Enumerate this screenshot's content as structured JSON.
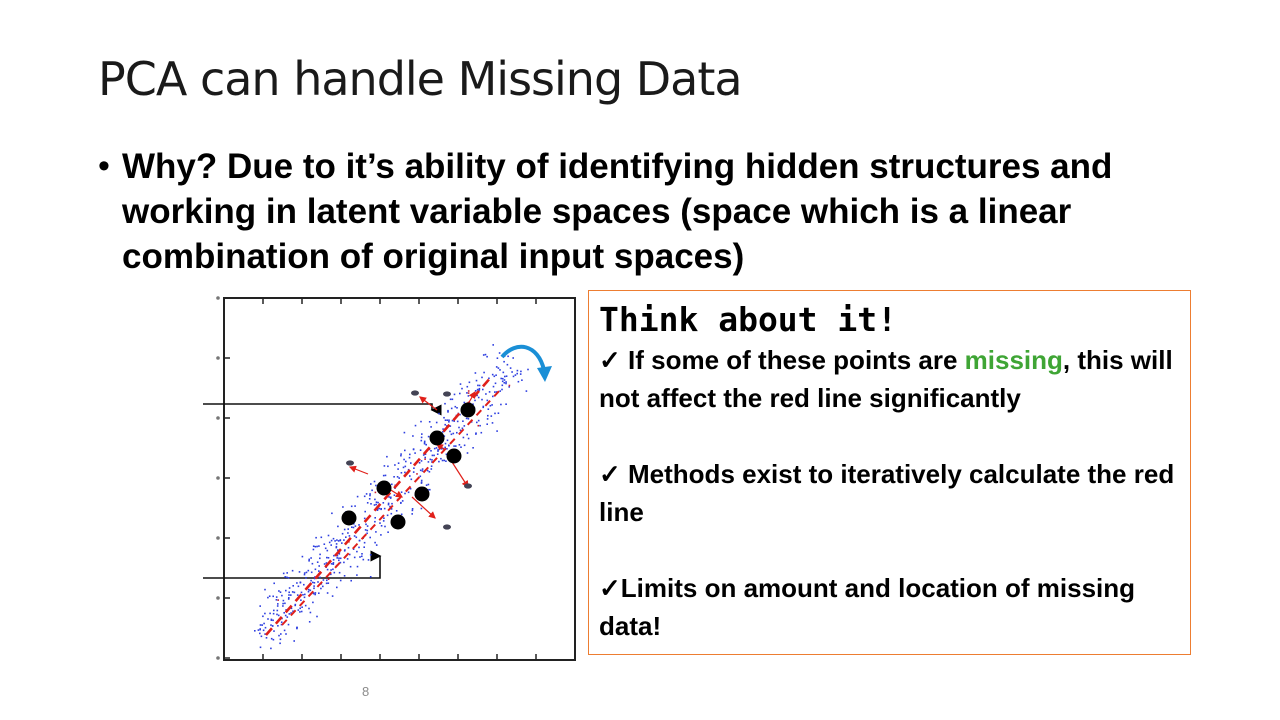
{
  "slide": {
    "title": "PCA can handle Missing Data",
    "bullet": "Why? Due to it’s ability of identifying hidden structures and working in latent variable spaces (space which is a linear combination of original input spaces)",
    "page_number": "8"
  },
  "callout": {
    "heading": "Think about it!",
    "item1": {
      "check": "✓",
      "prefix": " If some of these points are ",
      "highlight": "missing",
      "suffix": ", this will not affect the red line significantly"
    },
    "item2": {
      "check": "✓",
      "text": " Methods exist to iteratively calculate the red line"
    },
    "item3": {
      "check": "✓",
      "text": "Limits on amount and location of missing data!"
    },
    "border_color": "#ED7D31",
    "highlight_color": "#3fa535"
  },
  "figure": {
    "point_color": "#2e3fe0",
    "line_color": "#e0201a",
    "arrow_color": "#e0201a",
    "curved_arrow_color": "#1a8fd6"
  }
}
